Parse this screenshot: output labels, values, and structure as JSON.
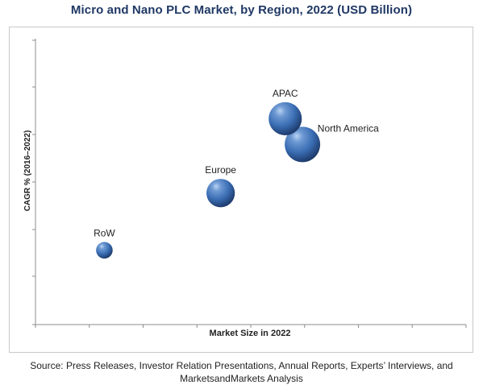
{
  "chart_data": {
    "type": "bubble",
    "title": "Micro and Nano PLC Market, by Region, 2022 (USD Billion)",
    "xlabel": "Market Size in 2022",
    "ylabel": "CAGR % (2016–2022)",
    "xlim": [
      0,
      10
    ],
    "ylim": [
      0,
      10
    ],
    "grid": false,
    "bubble_color": "#3a6db3",
    "points": [
      {
        "label": "RoW",
        "x": 1.6,
        "y": 2.6,
        "size": 0.7
      },
      {
        "label": "Europe",
        "x": 4.3,
        "y": 4.6,
        "size": 1.2
      },
      {
        "label": "North America",
        "x": 6.2,
        "y": 6.3,
        "size": 1.5
      },
      {
        "label": "APAC",
        "x": 5.8,
        "y": 7.2,
        "size": 1.4
      }
    ]
  },
  "source_note": {
    "line1": "Source: Press Releases, Investor Relation Presentations, Annual Reports, Experts’ Interviews, and",
    "line2": "MarketsandMarkets Analysis"
  }
}
